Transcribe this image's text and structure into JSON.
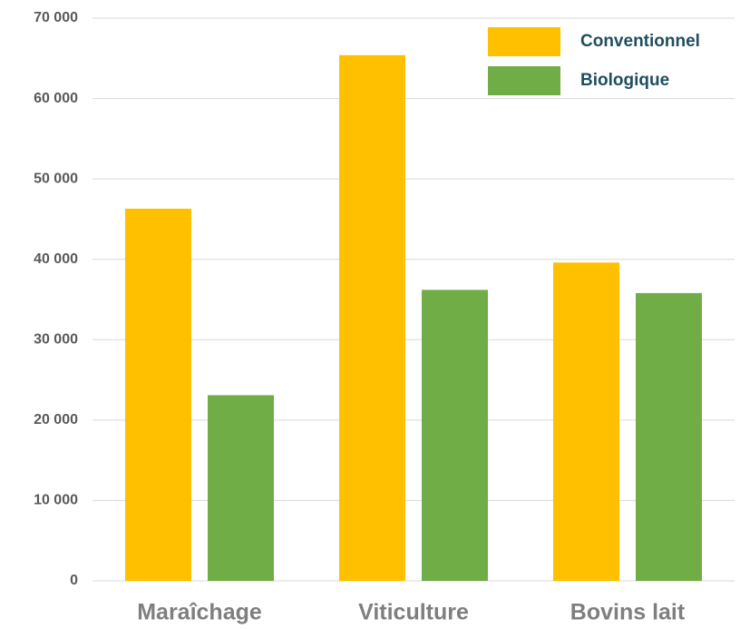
{
  "chart_data": {
    "type": "bar",
    "categories": [
      "Maraîchage",
      "Viticulture",
      "Bovins lait"
    ],
    "series": [
      {
        "name": "Conventionnel",
        "color": "#ffc000",
        "values": [
          46300,
          65400,
          39600
        ]
      },
      {
        "name": "Biologique",
        "color": "#70ad47",
        "values": [
          23100,
          36200,
          35800
        ]
      }
    ],
    "ylim": [
      0,
      70000
    ],
    "yticks": [
      0,
      {
        "value": 10000,
        "label": "10 000"
      },
      {
        "value": 20000,
        "label": "20 000"
      },
      {
        "value": 30000,
        "label": "30 000"
      },
      {
        "value": 40000,
        "label": "40 000"
      },
      {
        "value": 50000,
        "label": "50 000"
      },
      {
        "value": 60000,
        "label": "60 000"
      },
      {
        "value": 70000,
        "label": "70 000"
      }
    ],
    "grid": true,
    "legend": "top-right"
  }
}
